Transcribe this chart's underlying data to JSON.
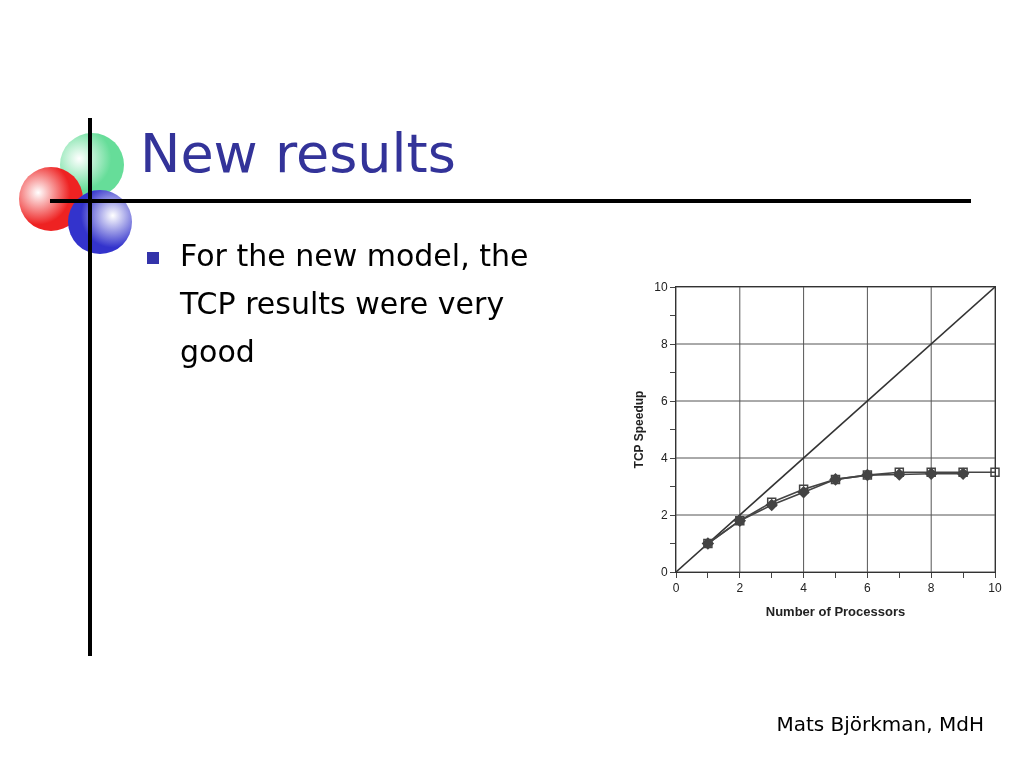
{
  "chart_data": {
    "type": "line",
    "title": "New results",
    "annotations": [
      "For the new model, the TCP results were very good",
      "Mats Björkman, MdH"
    ],
    "xlabel": "Number of Processors",
    "ylabel": "TCP Speedup",
    "xlim": [
      0,
      10
    ],
    "xticks": [
      0,
      {
        "value": 1,
        "label": null
      },
      2,
      {
        "value": 3,
        "label": null
      },
      4,
      {
        "value": 5,
        "label": null
      },
      6,
      {
        "value": 7,
        "label": null
      },
      8,
      {
        "value": 9,
        "label": null
      },
      10
    ],
    "ylim": [
      0,
      10
    ],
    "yticks": [
      0,
      {
        "value": 1,
        "label": null
      },
      2,
      {
        "value": 3,
        "label": null
      },
      4,
      {
        "value": 5,
        "label": null
      },
      6,
      {
        "value": 7,
        "label": null
      },
      8,
      {
        "value": 9,
        "label": null
      },
      10
    ],
    "grid": true,
    "series": [
      {
        "color": "#333333",
        "marker": "none",
        "x": [
          0,
          10
        ],
        "values": [
          0,
          10
        ]
      },
      {
        "color": "#444444",
        "marker": "square",
        "x": [
          1,
          2,
          3,
          4,
          5,
          6,
          7,
          8,
          9,
          10
        ],
        "values": [
          1,
          1.8,
          2.45,
          2.9,
          3.25,
          3.4,
          3.5,
          3.5,
          3.5,
          3.5
        ]
      },
      {
        "color": "#444444",
        "marker": "diamond",
        "x": [
          1,
          2,
          3,
          4,
          5,
          6,
          7,
          8,
          9
        ],
        "values": [
          1,
          1.8,
          2.35,
          2.8,
          3.25,
          3.4,
          3.42,
          3.45,
          3.45
        ]
      }
    ]
  }
}
